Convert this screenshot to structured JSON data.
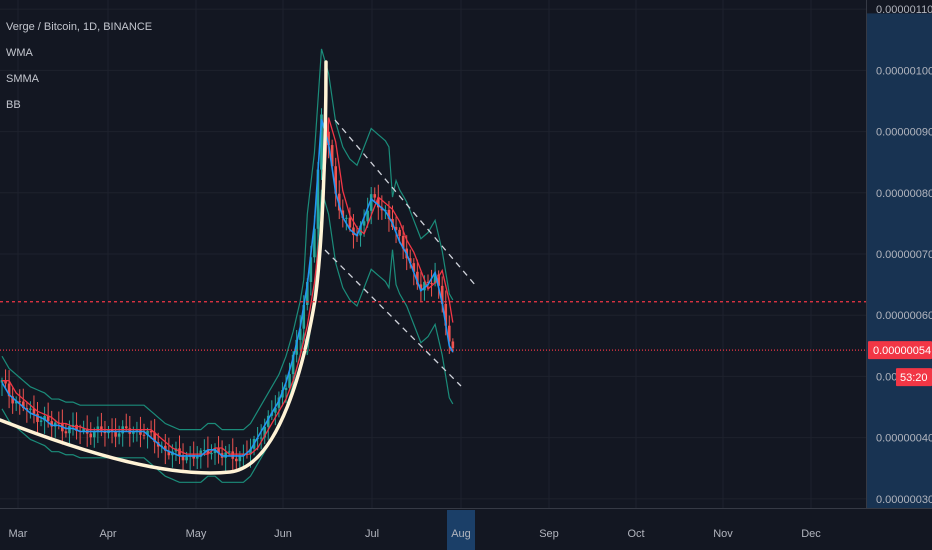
{
  "header": {
    "symbol_line": "Verge / Bitcoin, 1D, BINANCE",
    "indicators": [
      "WMA",
      "SMMA",
      "BB"
    ]
  },
  "chart_data": {
    "type": "candlestick",
    "title": "Verge / Bitcoin, 1D, BINANCE",
    "x_labels": [
      "Mar",
      "Apr",
      "May",
      "Jun",
      "Jul",
      "Aug",
      "Sep",
      "Oct",
      "Nov",
      "Dec"
    ],
    "highlighted_x_label": "Aug",
    "y_ticks": [
      "0.00000110",
      "0.00000100",
      "0.00000090",
      "0.00000080",
      "0.00000070",
      "0.00000060",
      "0.00000050",
      "0.00000040",
      "0.00000030"
    ],
    "ylim": [
      2.85e-07,
      1.115e-06
    ],
    "current_price_label": "0.00000054",
    "countdown_label": "53:20",
    "horizontal_lines": [
      {
        "value": 6.22e-07,
        "style": "dashed",
        "color": "#f23645"
      },
      {
        "value": 5.43e-07,
        "style": "dotted",
        "color": "#f23645"
      }
    ],
    "close_approx": [
      [
        0,
        49
      ],
      [
        2,
        47
      ],
      [
        4,
        46
      ],
      [
        6,
        45
      ],
      [
        8,
        44
      ],
      [
        10,
        43.5
      ],
      [
        12,
        43
      ],
      [
        14,
        42
      ],
      [
        16,
        42
      ],
      [
        18,
        41.5
      ],
      [
        20,
        41.5
      ],
      [
        22,
        41
      ],
      [
        24,
        41
      ],
      [
        26,
        41
      ],
      [
        28,
        41
      ],
      [
        30,
        41
      ],
      [
        32,
        41
      ],
      [
        34,
        41
      ],
      [
        36,
        41
      ],
      [
        38,
        41
      ],
      [
        40,
        41
      ],
      [
        42,
        40
      ],
      [
        44,
        39
      ],
      [
        46,
        38
      ],
      [
        48,
        37.5
      ],
      [
        50,
        37
      ],
      [
        52,
        37
      ],
      [
        54,
        37
      ],
      [
        56,
        37
      ],
      [
        58,
        38
      ],
      [
        60,
        38
      ],
      [
        62,
        37
      ],
      [
        64,
        37
      ],
      [
        66,
        37
      ],
      [
        68,
        37
      ],
      [
        70,
        38
      ],
      [
        72,
        40
      ],
      [
        74,
        42
      ],
      [
        76,
        44
      ],
      [
        78,
        46
      ],
      [
        80,
        49
      ],
      [
        82,
        53
      ],
      [
        84,
        58
      ],
      [
        86,
        65
      ],
      [
        88,
        75
      ],
      [
        90,
        92
      ],
      [
        92,
        88
      ],
      [
        94,
        80
      ],
      [
        96,
        76
      ],
      [
        98,
        74
      ],
      [
        100,
        73
      ],
      [
        102,
        76
      ],
      [
        104,
        79
      ],
      [
        106,
        78
      ],
      [
        108,
        77
      ],
      [
        110,
        75
      ],
      [
        112,
        72
      ],
      [
        114,
        70
      ],
      [
        116,
        67
      ],
      [
        118,
        64
      ],
      [
        120,
        65
      ],
      [
        122,
        67
      ],
      [
        124,
        62
      ],
      [
        126,
        55
      ],
      [
        127,
        54
      ]
    ]
  },
  "colors": {
    "background": "#131722",
    "grid": "#1e222d",
    "up_candle": "#26a69a",
    "down_candle": "#ef5350",
    "wma": "#2196f3",
    "smma": "#f23645",
    "bb_band": "#1b8c7a",
    "curve": "#fff3d6",
    "channel": "#d1d4dc",
    "axis_highlight": "#1e4a7a"
  }
}
